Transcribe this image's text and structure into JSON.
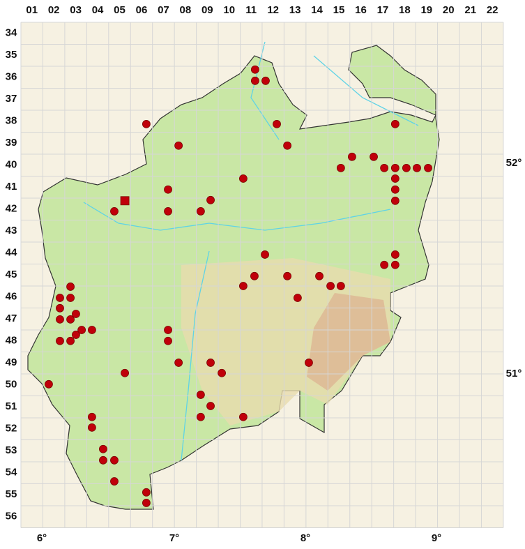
{
  "columns": [
    "01",
    "02",
    "03",
    "04",
    "05",
    "06",
    "07",
    "08",
    "09",
    "10",
    "11",
    "12",
    "13",
    "14",
    "15",
    "16",
    "17",
    "18",
    "19",
    "20",
    "21",
    "22"
  ],
  "rows": [
    "34",
    "35",
    "36",
    "37",
    "38",
    "39",
    "40",
    "41",
    "42",
    "43",
    "44",
    "45",
    "46",
    "47",
    "48",
    "49",
    "50",
    "51",
    "52",
    "53",
    "54",
    "55",
    "56"
  ],
  "longitudes": [
    "6°",
    "7°",
    "8°",
    "9°"
  ],
  "latitudes": [
    "52°",
    "51°"
  ],
  "records": [
    [
      11.18,
      35.65
    ],
    [
      11.18,
      36.16
    ],
    [
      11.66,
      36.16
    ],
    [
      12.17,
      38.13
    ],
    [
      12.65,
      39.11
    ],
    [
      6.22,
      38.13
    ],
    [
      7.69,
      39.11
    ],
    [
      10.64,
      40.61
    ],
    [
      15.09,
      40.13
    ],
    [
      15.6,
      39.62
    ],
    [
      16.59,
      39.62
    ],
    [
      17.57,
      38.13
    ],
    [
      17.07,
      40.13
    ],
    [
      17.57,
      40.13
    ],
    [
      18.08,
      40.13
    ],
    [
      18.56,
      40.13
    ],
    [
      19.07,
      40.13
    ],
    [
      17.57,
      40.61
    ],
    [
      17.57,
      41.11
    ],
    [
      17.57,
      41.62
    ],
    [
      7.21,
      41.11
    ],
    [
      9.15,
      41.59
    ],
    [
      4.76,
      42.1
    ],
    [
      7.21,
      42.1
    ],
    [
      8.7,
      42.1
    ],
    [
      11.63,
      44.07
    ],
    [
      17.57,
      44.07
    ],
    [
      17.07,
      44.54
    ],
    [
      17.57,
      44.54
    ],
    [
      11.15,
      45.05
    ],
    [
      12.65,
      45.05
    ],
    [
      14.11,
      45.05
    ],
    [
      10.64,
      45.5
    ],
    [
      14.62,
      45.5
    ],
    [
      15.09,
      45.5
    ],
    [
      13.12,
      46.04
    ],
    [
      2.76,
      45.53
    ],
    [
      2.28,
      46.04
    ],
    [
      2.76,
      46.04
    ],
    [
      2.28,
      46.51
    ],
    [
      3.01,
      46.77
    ],
    [
      2.28,
      47.02
    ],
    [
      2.76,
      47.02
    ],
    [
      3.01,
      47.72
    ],
    [
      3.27,
      47.5
    ],
    [
      3.74,
      47.5
    ],
    [
      7.21,
      47.5
    ],
    [
      2.28,
      48.0
    ],
    [
      2.76,
      48.0
    ],
    [
      7.21,
      48.0
    ],
    [
      7.69,
      48.99
    ],
    [
      9.15,
      48.99
    ],
    [
      13.63,
      48.99
    ],
    [
      9.66,
      49.46
    ],
    [
      5.24,
      49.46
    ],
    [
      1.77,
      49.97
    ],
    [
      8.7,
      50.45
    ],
    [
      9.15,
      50.96
    ],
    [
      8.7,
      51.46
    ],
    [
      10.64,
      51.46
    ],
    [
      3.74,
      51.46
    ],
    [
      3.74,
      51.94
    ],
    [
      4.25,
      52.92
    ],
    [
      4.25,
      53.43
    ],
    [
      4.76,
      53.43
    ],
    [
      4.76,
      54.39
    ],
    [
      6.22,
      54.89
    ],
    [
      6.22,
      55.37
    ]
  ],
  "square_records": [
    [
      5.24,
      41.62
    ]
  ]
}
